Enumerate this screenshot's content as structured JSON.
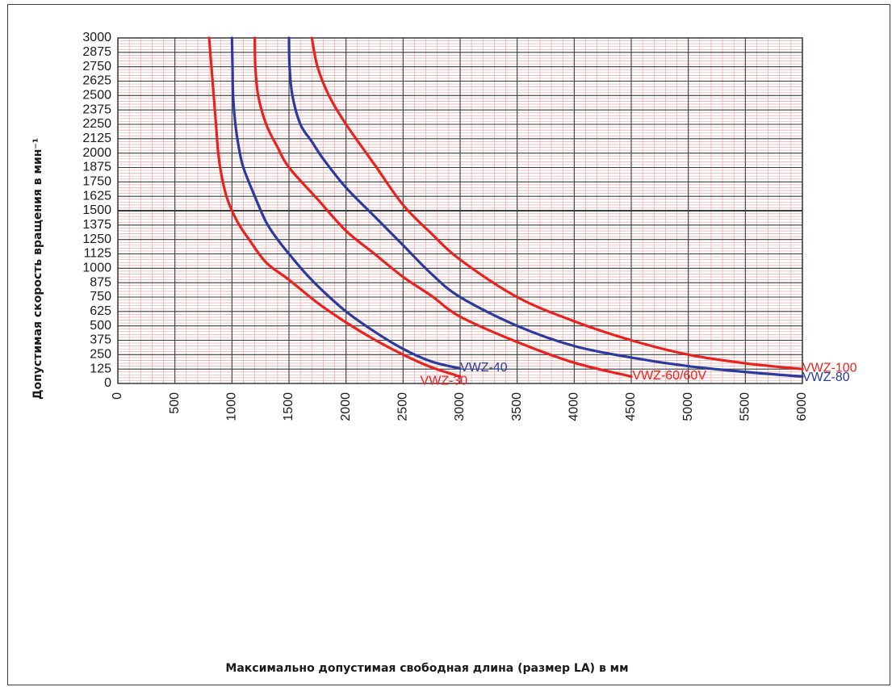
{
  "chart_data": {
    "type": "line",
    "title": "",
    "xlabel": "Максимально допустимая свободная длина (размер LA) в мм",
    "ylabel": "Допустимая скорость вращения в мин⁻¹",
    "xlim": [
      0,
      6000
    ],
    "ylim": [
      0,
      3000
    ],
    "x_ticks": [
      "0",
      "500",
      "1000",
      "1500",
      "2000",
      "2500",
      "3000",
      "3500",
      "4000",
      "4500",
      "5000",
      "5500",
      "6000"
    ],
    "y_ticks": [
      "0",
      "125",
      "250",
      "375",
      "500",
      "625",
      "750",
      "875",
      "1000",
      "1125",
      "1250",
      "1375",
      "1500",
      "1625",
      "1750",
      "1875",
      "2000",
      "2125",
      "2250",
      "2375",
      "2500",
      "2625",
      "2750",
      "2875",
      "3000"
    ],
    "grid": true,
    "series": [
      {
        "name": "VWZ-30",
        "color": "#e8231f",
        "label_at": [
          2650,
          20
        ],
        "points": [
          [
            800,
            3000
          ],
          [
            820,
            2750
          ],
          [
            840,
            2500
          ],
          [
            860,
            2250
          ],
          [
            880,
            2000
          ],
          [
            910,
            1800
          ],
          [
            960,
            1600
          ],
          [
            1050,
            1400
          ],
          [
            1150,
            1250
          ],
          [
            1300,
            1050
          ],
          [
            1500,
            900
          ],
          [
            1750,
            700
          ],
          [
            2000,
            530
          ],
          [
            2250,
            380
          ],
          [
            2500,
            250
          ],
          [
            2750,
            140
          ],
          [
            3000,
            60
          ]
        ]
      },
      {
        "name": "VWZ-40",
        "color": "#2b3a9e",
        "label_at": [
          3000,
          135
        ],
        "points": [
          [
            1000,
            3000
          ],
          [
            1005,
            2750
          ],
          [
            1010,
            2500
          ],
          [
            1030,
            2250
          ],
          [
            1060,
            2050
          ],
          [
            1100,
            1875
          ],
          [
            1200,
            1625
          ],
          [
            1300,
            1400
          ],
          [
            1400,
            1250
          ],
          [
            1500,
            1125
          ],
          [
            1650,
            950
          ],
          [
            1800,
            800
          ],
          [
            2000,
            625
          ],
          [
            2250,
            450
          ],
          [
            2500,
            300
          ],
          [
            2750,
            190
          ],
          [
            3000,
            130
          ]
        ]
      },
      {
        "name": "VWZ-60/60V",
        "color": "#e8231f",
        "label_at": [
          4510,
          65
        ],
        "points": [
          [
            1200,
            3000
          ],
          [
            1205,
            2750
          ],
          [
            1230,
            2500
          ],
          [
            1300,
            2250
          ],
          [
            1400,
            2050
          ],
          [
            1500,
            1875
          ],
          [
            1750,
            1600
          ],
          [
            2000,
            1325
          ],
          [
            2250,
            1125
          ],
          [
            2500,
            925
          ],
          [
            2750,
            760
          ],
          [
            3000,
            580
          ],
          [
            3500,
            360
          ],
          [
            4000,
            180
          ],
          [
            4500,
            60
          ]
        ]
      },
      {
        "name": "VWZ-80",
        "color": "#2b3a9e",
        "label_at": [
          6000,
          50
        ],
        "points": [
          [
            1500,
            3000
          ],
          [
            1505,
            2750
          ],
          [
            1530,
            2500
          ],
          [
            1600,
            2250
          ],
          [
            1700,
            2100
          ],
          [
            1800,
            1950
          ],
          [
            2000,
            1700
          ],
          [
            2250,
            1450
          ],
          [
            2500,
            1200
          ],
          [
            2750,
            950
          ],
          [
            3000,
            750
          ],
          [
            3500,
            500
          ],
          [
            4000,
            325
          ],
          [
            4500,
            225
          ],
          [
            5000,
            150
          ],
          [
            5500,
            100
          ],
          [
            6000,
            60
          ]
        ]
      },
      {
        "name": "VWZ-100",
        "color": "#e8231f",
        "label_at": [
          6000,
          130
        ],
        "points": [
          [
            1700,
            3000
          ],
          [
            1750,
            2750
          ],
          [
            1850,
            2500
          ],
          [
            2000,
            2250
          ],
          [
            2250,
            1900
          ],
          [
            2500,
            1550
          ],
          [
            2750,
            1300
          ],
          [
            3000,
            1075
          ],
          [
            3500,
            750
          ],
          [
            4000,
            540
          ],
          [
            4500,
            375
          ],
          [
            5000,
            250
          ],
          [
            5500,
            175
          ],
          [
            6000,
            125
          ]
        ]
      }
    ]
  }
}
